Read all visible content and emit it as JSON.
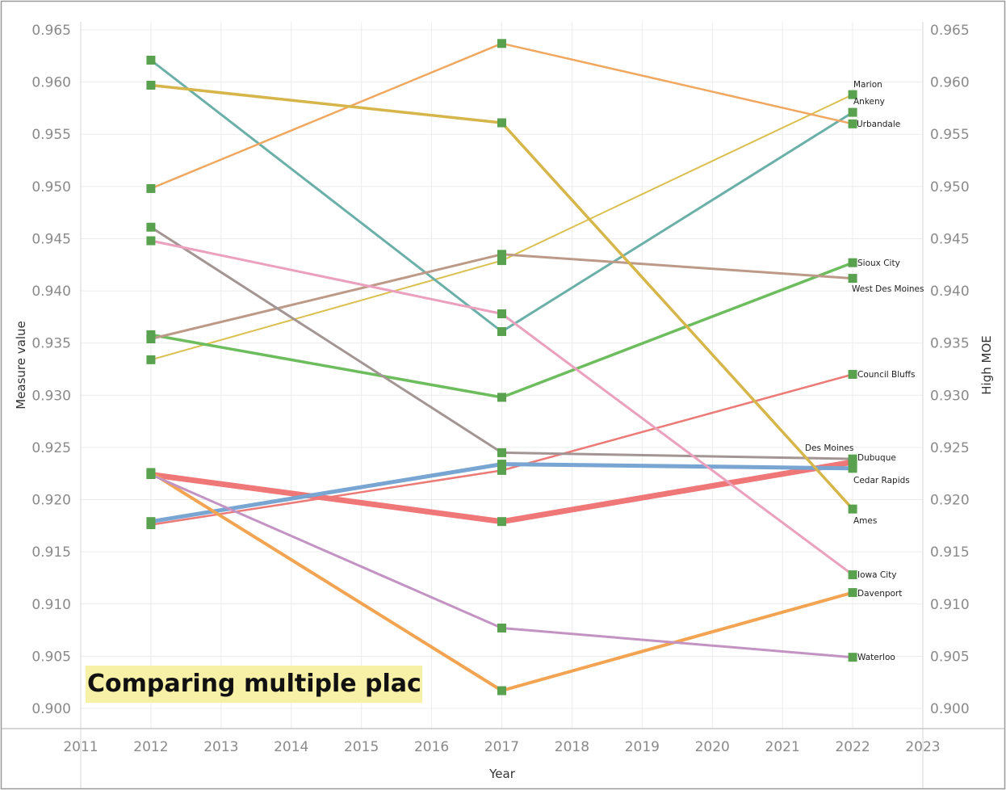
{
  "annotation": "Comparing multiple places",
  "chart_data": {
    "type": "line",
    "xlabel": "Year",
    "ylabel": "Measure value",
    "ylabel_right": "High MOE",
    "xlim": [
      2011,
      2023
    ],
    "ylim": [
      0.9,
      0.965
    ],
    "x_ticks": [
      "2011",
      "2012",
      "2013",
      "2014",
      "2015",
      "2016",
      "2017",
      "2018",
      "2019",
      "2020",
      "2021",
      "2022",
      "2023"
    ],
    "y_ticks": [
      "0.900",
      "0.905",
      "0.910",
      "0.915",
      "0.920",
      "0.925",
      "0.930",
      "0.935",
      "0.940",
      "0.945",
      "0.950",
      "0.955",
      "0.960",
      "0.965"
    ],
    "grid": true,
    "marker_color": "#59a14f",
    "x": [
      2012,
      2017,
      2022
    ],
    "series": [
      {
        "name": "Marion",
        "values": [
          0.9334,
          0.9429,
          0.9588
        ],
        "color": "#d9c050",
        "width": 2
      },
      {
        "name": "Ankeny",
        "values": [
          0.9621,
          0.9361,
          0.9571
        ],
        "color": "#6bb0a8",
        "width": 3
      },
      {
        "name": "Urbandale",
        "values": [
          0.9498,
          0.9637,
          0.956
        ],
        "color": "#f0a860",
        "width": 2.5
      },
      {
        "name": "Sioux City",
        "values": [
          0.9358,
          0.9298,
          0.9427
        ],
        "color": "#6dbd5e",
        "width": 3.5
      },
      {
        "name": "West Des Moines",
        "values": [
          0.9354,
          0.9435,
          0.9412
        ],
        "color": "#bd9a88",
        "width": 3
      },
      {
        "name": "Council Bluffs",
        "values": [
          0.9176,
          0.9228,
          0.932
        ],
        "color": "#ec7b78",
        "width": 2.5
      },
      {
        "name": "Des Moines",
        "values": [
          0.9224,
          0.9179,
          0.9236
        ],
        "color": "#ef7777",
        "width": 7
      },
      {
        "name": "Dubuque",
        "values": [
          0.9461,
          0.9245,
          0.9239
        ],
        "color": "#a39593",
        "width": 3
      },
      {
        "name": "Cedar Rapids",
        "values": [
          0.9179,
          0.9234,
          0.923
        ],
        "color": "#79a5d2",
        "width": 5
      },
      {
        "name": "Ames",
        "values": [
          0.9597,
          0.9561,
          0.9191
        ],
        "color": "#d6b54a",
        "width": 3.5
      },
      {
        "name": "Iowa City",
        "values": [
          0.9448,
          0.9378,
          0.9128
        ],
        "color": "#eba0bd",
        "width": 3
      },
      {
        "name": "Davenport",
        "values": [
          0.9226,
          0.9017,
          0.9111
        ],
        "color": "#f2a452",
        "width": 4
      },
      {
        "name": "Waterloo",
        "values": [
          0.9224,
          0.9077,
          0.9049
        ],
        "color": "#c293c3",
        "width": 3
      }
    ]
  }
}
